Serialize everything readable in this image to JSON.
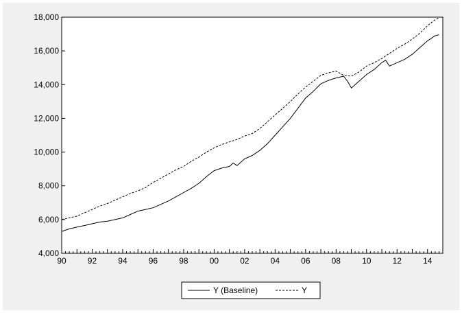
{
  "chart_data": {
    "type": "line",
    "title": "",
    "xlabel": "",
    "ylabel": "",
    "xlim": [
      1990.0,
      2015.0
    ],
    "ylim": [
      4000,
      18000
    ],
    "x_tick_labels": [
      {
        "x": 1990,
        "label": "90"
      },
      {
        "x": 1992,
        "label": "92"
      },
      {
        "x": 1994,
        "label": "94"
      },
      {
        "x": 1996,
        "label": "96"
      },
      {
        "x": 1998,
        "label": "98"
      },
      {
        "x": 2000,
        "label": "00"
      },
      {
        "x": 2002,
        "label": "02"
      },
      {
        "x": 2004,
        "label": "04"
      },
      {
        "x": 2006,
        "label": "06"
      },
      {
        "x": 2008,
        "label": "08"
      },
      {
        "x": 2010,
        "label": "10"
      },
      {
        "x": 2012,
        "label": "12"
      },
      {
        "x": 2014,
        "label": "14"
      }
    ],
    "y_ticks": [
      4000,
      6000,
      8000,
      10000,
      12000,
      14000,
      16000,
      18000
    ],
    "y_tick_labels": [
      "4,000",
      "6,000",
      "8,000",
      "10,000",
      "12,000",
      "14,000",
      "16,000",
      "18,000"
    ],
    "grid": false,
    "legend_position": "bottom-center",
    "series": [
      {
        "name": "Y (Baseline)",
        "style": "solid",
        "color": "#000000",
        "points": [
          [
            1990.0,
            5300
          ],
          [
            1990.5,
            5450
          ],
          [
            1991.0,
            5550
          ],
          [
            1991.5,
            5650
          ],
          [
            1992.0,
            5750
          ],
          [
            1992.5,
            5850
          ],
          [
            1993.0,
            5900
          ],
          [
            1993.5,
            6000
          ],
          [
            1994.0,
            6100
          ],
          [
            1994.5,
            6300
          ],
          [
            1995.0,
            6500
          ],
          [
            1995.5,
            6600
          ],
          [
            1996.0,
            6700
          ],
          [
            1996.5,
            6900
          ],
          [
            1997.0,
            7100
          ],
          [
            1997.5,
            7350
          ],
          [
            1998.0,
            7600
          ],
          [
            1998.5,
            7850
          ],
          [
            1999.0,
            8150
          ],
          [
            1999.5,
            8550
          ],
          [
            2000.0,
            8900
          ],
          [
            2000.5,
            9050
          ],
          [
            2001.0,
            9150
          ],
          [
            2001.25,
            9350
          ],
          [
            2001.5,
            9200
          ],
          [
            2002.0,
            9600
          ],
          [
            2002.5,
            9800
          ],
          [
            2003.0,
            10100
          ],
          [
            2003.5,
            10500
          ],
          [
            2004.0,
            11000
          ],
          [
            2004.5,
            11500
          ],
          [
            2005.0,
            12000
          ],
          [
            2005.5,
            12600
          ],
          [
            2006.0,
            13200
          ],
          [
            2006.5,
            13600
          ],
          [
            2007.0,
            14050
          ],
          [
            2007.5,
            14250
          ],
          [
            2008.0,
            14400
          ],
          [
            2008.5,
            14500
          ],
          [
            2008.75,
            14200
          ],
          [
            2009.0,
            13800
          ],
          [
            2009.5,
            14200
          ],
          [
            2010.0,
            14600
          ],
          [
            2010.5,
            14900
          ],
          [
            2011.0,
            15300
          ],
          [
            2011.25,
            15450
          ],
          [
            2011.5,
            15100
          ],
          [
            2012.0,
            15300
          ],
          [
            2012.5,
            15500
          ],
          [
            2013.0,
            15800
          ],
          [
            2013.5,
            16200
          ],
          [
            2014.0,
            16600
          ],
          [
            2014.5,
            16900
          ],
          [
            2014.75,
            16950
          ]
        ]
      },
      {
        "name": "Y",
        "style": "dashed",
        "color": "#000000",
        "points": [
          [
            1990.0,
            6000
          ],
          [
            1990.5,
            6100
          ],
          [
            1991.0,
            6200
          ],
          [
            1991.5,
            6400
          ],
          [
            1992.0,
            6600
          ],
          [
            1992.5,
            6800
          ],
          [
            1993.0,
            6950
          ],
          [
            1993.5,
            7150
          ],
          [
            1994.0,
            7350
          ],
          [
            1994.5,
            7550
          ],
          [
            1995.0,
            7700
          ],
          [
            1995.5,
            7900
          ],
          [
            1996.0,
            8200
          ],
          [
            1996.5,
            8450
          ],
          [
            1997.0,
            8700
          ],
          [
            1997.5,
            8950
          ],
          [
            1998.0,
            9150
          ],
          [
            1998.5,
            9450
          ],
          [
            1999.0,
            9700
          ],
          [
            1999.5,
            10000
          ],
          [
            2000.0,
            10250
          ],
          [
            2000.5,
            10450
          ],
          [
            2001.0,
            10600
          ],
          [
            2001.5,
            10750
          ],
          [
            2002.0,
            10950
          ],
          [
            2002.5,
            11100
          ],
          [
            2003.0,
            11400
          ],
          [
            2003.5,
            11800
          ],
          [
            2004.0,
            12200
          ],
          [
            2004.5,
            12600
          ],
          [
            2005.0,
            13000
          ],
          [
            2005.5,
            13450
          ],
          [
            2006.0,
            13850
          ],
          [
            2006.5,
            14200
          ],
          [
            2007.0,
            14550
          ],
          [
            2007.5,
            14700
          ],
          [
            2008.0,
            14800
          ],
          [
            2008.5,
            14550
          ],
          [
            2009.0,
            14500
          ],
          [
            2009.5,
            14750
          ],
          [
            2010.0,
            15100
          ],
          [
            2010.5,
            15300
          ],
          [
            2011.0,
            15550
          ],
          [
            2011.5,
            15850
          ],
          [
            2012.0,
            16150
          ],
          [
            2012.5,
            16400
          ],
          [
            2013.0,
            16700
          ],
          [
            2013.5,
            17050
          ],
          [
            2014.0,
            17500
          ],
          [
            2014.5,
            17850
          ],
          [
            2014.75,
            17950
          ]
        ]
      }
    ],
    "legend": [
      {
        "label": "Y (Baseline)",
        "style": "solid"
      },
      {
        "label": "Y",
        "style": "dashed"
      }
    ]
  }
}
